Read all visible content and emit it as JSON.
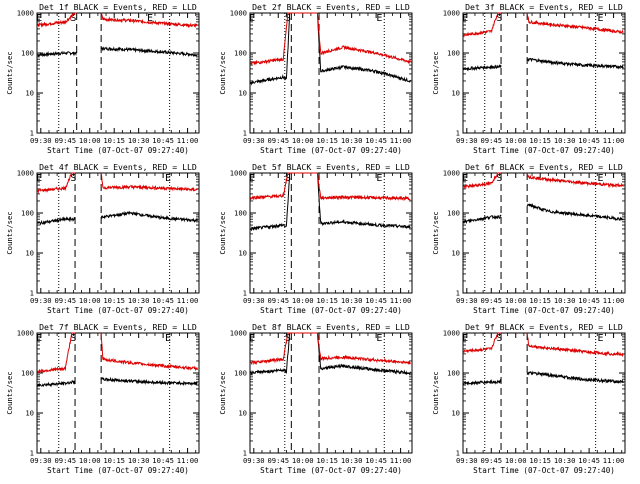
{
  "colors": {
    "events": "#000000",
    "lld": "#dd0000",
    "background": "#ffffff",
    "axis": "#000000"
  },
  "chart_data": [
    {
      "type": "line",
      "title": "Det 1f BLACK = Events, RED = LLD",
      "xlabel": "Start Time (07-Oct-07 09:27:40)",
      "ylabel": "Counts/sec",
      "x_ticks": [
        "09:30",
        "09:45",
        "10:00",
        "10:15",
        "10:30",
        "10:45",
        "11:00"
      ],
      "y_ticks": [
        "1",
        "10",
        "100",
        "1000"
      ],
      "y_scale": "log",
      "ylim": [
        1,
        1000
      ],
      "xlim": [
        "09:27:40",
        "11:07:00"
      ],
      "markers": [
        "E",
        "S",
        "E"
      ],
      "marker_times": [
        "09:29",
        "09:50",
        "10:37"
      ],
      "dotted_lines": [
        "09:41",
        "10:49"
      ],
      "dashed_lines": [
        "09:52",
        "10:07"
      ],
      "gap": [
        "09:52",
        "10:07"
      ],
      "series": [
        {
          "name": "Events",
          "points": [
            [
              "09:28",
              90
            ],
            [
              "09:45",
              100
            ],
            [
              "09:52",
              100
            ],
            [
              "10:07",
              130
            ],
            [
              "10:20",
              125
            ],
            [
              "10:40",
              110
            ],
            [
              "11:06",
              90
            ]
          ]
        },
        {
          "name": "LLD",
          "points": [
            [
              "09:28",
              500
            ],
            [
              "09:45",
              600
            ],
            [
              "09:51",
              1000
            ],
            [
              "10:07",
              1000
            ],
            [
              "10:08",
              700
            ],
            [
              "10:25",
              650
            ],
            [
              "10:45",
              550
            ],
            [
              "11:06",
              480
            ]
          ]
        }
      ]
    },
    {
      "type": "line",
      "title": "Det 2f BLACK = Events, RED = LLD",
      "xlabel": "Start Time (07-Oct-07 09:27:40)",
      "ylabel": "Counts/sec",
      "x_ticks": [
        "09:30",
        "09:45",
        "10:00",
        "10:15",
        "10:30",
        "10:45",
        "11:00"
      ],
      "y_ticks": [
        "1",
        "10",
        "100",
        "1000"
      ],
      "y_scale": "log",
      "ylim": [
        1,
        1000
      ],
      "xlim": [
        "09:27:40",
        "11:07:00"
      ],
      "markers": [
        "E",
        "S",
        "E"
      ],
      "marker_times": [
        "09:29",
        "09:51",
        "10:47"
      ],
      "dotted_lines": [
        "09:49",
        "10:50"
      ],
      "dashed_lines": [
        "09:53",
        "10:10"
      ],
      "gap": [],
      "series": [
        {
          "name": "Events",
          "points": [
            [
              "09:28",
              18
            ],
            [
              "09:48",
              25
            ],
            [
              "09:50",
              22
            ],
            [
              "09:52",
              1000
            ],
            [
              "10:09",
              1000
            ],
            [
              "10:11",
              35
            ],
            [
              "10:25",
              45
            ],
            [
              "10:45",
              35
            ],
            [
              "11:06",
              20
            ]
          ]
        },
        {
          "name": "LLD",
          "points": [
            [
              "09:28",
              55
            ],
            [
              "09:48",
              70
            ],
            [
              "09:51",
              1000
            ],
            [
              "10:09",
              1000
            ],
            [
              "10:11",
              100
            ],
            [
              "10:25",
              140
            ],
            [
              "10:45",
              100
            ],
            [
              "11:06",
              60
            ]
          ]
        }
      ]
    },
    {
      "type": "line",
      "title": "Det 3f BLACK = Events, RED = LLD",
      "xlabel": "Start Time (07-Oct-07 09:27:40)",
      "ylabel": "Counts/sec",
      "x_ticks": [
        "09:30",
        "09:45",
        "10:00",
        "10:15",
        "10:30",
        "10:45",
        "11:00"
      ],
      "y_ticks": [
        "1",
        "10",
        "100",
        "1000"
      ],
      "y_scale": "log",
      "ylim": [
        1,
        1000
      ],
      "xlim": [
        "09:27:40",
        "11:07:00"
      ],
      "markers": [
        "E",
        "S",
        "E"
      ],
      "marker_times": [
        "09:29",
        "09:50",
        "10:52"
      ],
      "dotted_lines": [
        "09:41",
        "10:49"
      ],
      "dashed_lines": [
        "09:51",
        "10:07"
      ],
      "gap": [
        "09:51",
        "10:07"
      ],
      "series": [
        {
          "name": "Events",
          "points": [
            [
              "09:28",
              40
            ],
            [
              "09:45",
              45
            ],
            [
              "09:50",
              45
            ],
            [
              "10:08",
              70
            ],
            [
              "10:20",
              60
            ],
            [
              "10:40",
              50
            ],
            [
              "11:06",
              45
            ]
          ]
        },
        {
          "name": "LLD",
          "points": [
            [
              "09:28",
              280
            ],
            [
              "09:45",
              350
            ],
            [
              "09:49",
              1000
            ],
            [
              "10:07",
              1000
            ],
            [
              "10:08",
              600
            ],
            [
              "10:25",
              500
            ],
            [
              "10:45",
              420
            ],
            [
              "11:06",
              330
            ]
          ]
        }
      ]
    },
    {
      "type": "line",
      "title": "Det 4f BLACK = Events, RED = LLD",
      "xlabel": "Start Time (07-Oct-07 09:27:40)",
      "ylabel": "Counts/sec",
      "x_ticks": [
        "09:30",
        "09:45",
        "10:00",
        "10:15",
        "10:30",
        "10:45",
        "11:00"
      ],
      "y_ticks": [
        "1",
        "10",
        "100",
        "1000"
      ],
      "y_scale": "log",
      "ylim": [
        1,
        1000
      ],
      "xlim": [
        "09:27:40",
        "11:07:00"
      ],
      "markers": [
        "E",
        "S",
        "E"
      ],
      "marker_times": [
        "09:29",
        "09:50",
        "10:48"
      ],
      "dotted_lines": [
        "09:41",
        "10:49"
      ],
      "dashed_lines": [
        "09:51",
        "10:07"
      ],
      "gap": [
        "09:51",
        "10:07"
      ],
      "series": [
        {
          "name": "Events",
          "points": [
            [
              "09:28",
              55
            ],
            [
              "09:45",
              70
            ],
            [
              "09:50",
              70
            ],
            [
              "10:08",
              80
            ],
            [
              "10:25",
              100
            ],
            [
              "10:45",
              75
            ],
            [
              "11:06",
              65
            ]
          ]
        },
        {
          "name": "LLD",
          "points": [
            [
              "09:28",
              360
            ],
            [
              "09:45",
              420
            ],
            [
              "09:49",
              1000
            ],
            [
              "10:07",
              1000
            ],
            [
              "10:08",
              430
            ],
            [
              "10:25",
              450
            ],
            [
              "10:45",
              420
            ],
            [
              "11:06",
              380
            ]
          ]
        }
      ]
    },
    {
      "type": "line",
      "title": "Det 5f BLACK = Events, RED = LLD",
      "xlabel": "Start Time (07-Oct-07 09:27:40)",
      "ylabel": "Counts/sec",
      "x_ticks": [
        "09:30",
        "09:45",
        "10:00",
        "10:15",
        "10:30",
        "10:45",
        "11:00"
      ],
      "y_ticks": [
        "1",
        "10",
        "100",
        "1000"
      ],
      "y_scale": "log",
      "ylim": [
        1,
        1000
      ],
      "xlim": [
        "09:27:40",
        "11:07:00"
      ],
      "markers": [
        "E",
        "S",
        "E"
      ],
      "marker_times": [
        "09:29",
        "09:51",
        "10:47"
      ],
      "dotted_lines": [
        "09:49",
        "10:50"
      ],
      "dashed_lines": [
        "09:53",
        "10:10"
      ],
      "gap": [],
      "series": [
        {
          "name": "Events",
          "points": [
            [
              "09:28",
              40
            ],
            [
              "09:48",
              50
            ],
            [
              "09:50",
              45
            ],
            [
              "09:52",
              1000
            ],
            [
              "10:09",
              1000
            ],
            [
              "10:11",
              55
            ],
            [
              "10:25",
              60
            ],
            [
              "10:45",
              50
            ],
            [
              "11:06",
              45
            ]
          ]
        },
        {
          "name": "LLD",
          "points": [
            [
              "09:28",
              240
            ],
            [
              "09:48",
              270
            ],
            [
              "09:51",
              1000
            ],
            [
              "10:09",
              1000
            ],
            [
              "10:11",
              240
            ],
            [
              "10:25",
              250
            ],
            [
              "10:45",
              240
            ],
            [
              "11:06",
              230
            ]
          ]
        }
      ]
    },
    {
      "type": "line",
      "title": "Det 6f BLACK = Events, RED = LLD",
      "xlabel": "Start Time (07-Oct-07 09:27:40)",
      "ylabel": "Counts/sec",
      "x_ticks": [
        "09:30",
        "09:45",
        "10:00",
        "10:15",
        "10:30",
        "10:45",
        "11:00"
      ],
      "y_ticks": [
        "1",
        "10",
        "100",
        "1000"
      ],
      "y_scale": "log",
      "ylim": [
        1,
        1000
      ],
      "xlim": [
        "09:27:40",
        "11:07:00"
      ],
      "markers": [
        "E",
        "S",
        "E"
      ],
      "marker_times": [
        "09:29",
        "09:50",
        "10:52"
      ],
      "dotted_lines": [
        "09:41",
        "10:49"
      ],
      "dashed_lines": [
        "09:51",
        "10:07"
      ],
      "gap": [
        "09:51",
        "10:07"
      ],
      "series": [
        {
          "name": "Events",
          "points": [
            [
              "09:28",
              60
            ],
            [
              "09:45",
              80
            ],
            [
              "09:50",
              80
            ],
            [
              "10:08",
              160
            ],
            [
              "10:20",
              110
            ],
            [
              "10:40",
              90
            ],
            [
              "11:06",
              70
            ]
          ]
        },
        {
          "name": "LLD",
          "points": [
            [
              "09:28",
              450
            ],
            [
              "09:45",
              550
            ],
            [
              "09:49",
              1000
            ],
            [
              "10:07",
              1000
            ],
            [
              "10:08",
              800
            ],
            [
              "10:25",
              650
            ],
            [
              "10:45",
              550
            ],
            [
              "11:06",
              480
            ]
          ]
        }
      ]
    },
    {
      "type": "line",
      "title": "Det 7f BLACK = Events, RED = LLD",
      "xlabel": "Start Time (07-Oct-07 09:27:40)",
      "ylabel": "Counts/sec",
      "x_ticks": [
        "09:30",
        "09:45",
        "10:00",
        "10:15",
        "10:30",
        "10:45",
        "11:00"
      ],
      "y_ticks": [
        "1",
        "10",
        "100",
        "1000"
      ],
      "y_scale": "log",
      "ylim": [
        1,
        1000
      ],
      "xlim": [
        "09:27:40",
        "11:07:00"
      ],
      "markers": [
        "E",
        "S",
        "E"
      ],
      "marker_times": [
        "09:29",
        "09:50",
        "10:48"
      ],
      "dotted_lines": [
        "09:41",
        "10:49"
      ],
      "dashed_lines": [
        "09:51",
        "10:07"
      ],
      "gap": [
        "09:51",
        "10:07"
      ],
      "series": [
        {
          "name": "Events",
          "points": [
            [
              "09:28",
              50
            ],
            [
              "09:45",
              55
            ],
            [
              "09:50",
              60
            ],
            [
              "10:08",
              70
            ],
            [
              "10:20",
              65
            ],
            [
              "10:40",
              58
            ],
            [
              "11:06",
              55
            ]
          ]
        },
        {
          "name": "LLD",
          "points": [
            [
              "09:28",
              110
            ],
            [
              "09:45",
              130
            ],
            [
              "09:49",
              1000
            ],
            [
              "10:07",
              1000
            ],
            [
              "10:08",
              220
            ],
            [
              "10:25",
              180
            ],
            [
              "10:45",
              150
            ],
            [
              "11:06",
              130
            ]
          ]
        }
      ]
    },
    {
      "type": "line",
      "title": "Det 8f BLACK = Events, RED = LLD",
      "xlabel": "Start Time (07-Oct-07 09:27:40)",
      "ylabel": "Counts/sec",
      "x_ticks": [
        "09:30",
        "09:45",
        "10:00",
        "10:15",
        "10:30",
        "10:45",
        "11:00"
      ],
      "y_ticks": [
        "1",
        "10",
        "100",
        "1000"
      ],
      "y_scale": "log",
      "ylim": [
        1,
        1000
      ],
      "xlim": [
        "09:27:40",
        "11:07:00"
      ],
      "markers": [
        "E",
        "S",
        "E"
      ],
      "marker_times": [
        "09:29",
        "09:51",
        "10:47"
      ],
      "dotted_lines": [
        "09:49",
        "10:50"
      ],
      "dashed_lines": [
        "09:53",
        "10:10"
      ],
      "gap": [],
      "series": [
        {
          "name": "Events",
          "points": [
            [
              "09:28",
              100
            ],
            [
              "09:48",
              120
            ],
            [
              "09:50",
              110
            ],
            [
              "09:52",
              1000
            ],
            [
              "10:09",
              1000
            ],
            [
              "10:11",
              130
            ],
            [
              "10:25",
              150
            ],
            [
              "10:45",
              120
            ],
            [
              "11:06",
              100
            ]
          ]
        },
        {
          "name": "LLD",
          "points": [
            [
              "09:28",
              180
            ],
            [
              "09:48",
              220
            ],
            [
              "09:51",
              1000
            ],
            [
              "10:09",
              1000
            ],
            [
              "10:11",
              230
            ],
            [
              "10:25",
              250
            ],
            [
              "10:45",
              210
            ],
            [
              "11:06",
              180
            ]
          ]
        }
      ]
    },
    {
      "type": "line",
      "title": "Det 9f BLACK = Events, RED = LLD",
      "xlabel": "Start Time (07-Oct-07 09:27:40)",
      "ylabel": "Counts/sec",
      "x_ticks": [
        "09:30",
        "09:45",
        "10:00",
        "10:15",
        "10:30",
        "10:45",
        "11:00"
      ],
      "y_ticks": [
        "1",
        "10",
        "100",
        "1000"
      ],
      "y_scale": "log",
      "ylim": [
        1,
        1000
      ],
      "xlim": [
        "09:27:40",
        "11:07:00"
      ],
      "markers": [
        "E",
        "S",
        "E"
      ],
      "marker_times": [
        "09:29",
        "09:50",
        "10:52"
      ],
      "dotted_lines": [
        "09:41",
        "10:49"
      ],
      "dashed_lines": [
        "09:51",
        "10:07"
      ],
      "gap": [
        "09:51",
        "10:07"
      ],
      "series": [
        {
          "name": "Events",
          "points": [
            [
              "09:28",
              55
            ],
            [
              "09:45",
              60
            ],
            [
              "09:50",
              60
            ],
            [
              "10:08",
              100
            ],
            [
              "10:20",
              90
            ],
            [
              "10:40",
              70
            ],
            [
              "11:06",
              60
            ]
          ]
        },
        {
          "name": "LLD",
          "points": [
            [
              "09:28",
              350
            ],
            [
              "09:45",
              400
            ],
            [
              "09:49",
              1000
            ],
            [
              "10:07",
              1000
            ],
            [
              "10:08",
              480
            ],
            [
              "10:25",
              400
            ],
            [
              "10:45",
              330
            ],
            [
              "11:06",
              290
            ]
          ]
        }
      ]
    }
  ]
}
